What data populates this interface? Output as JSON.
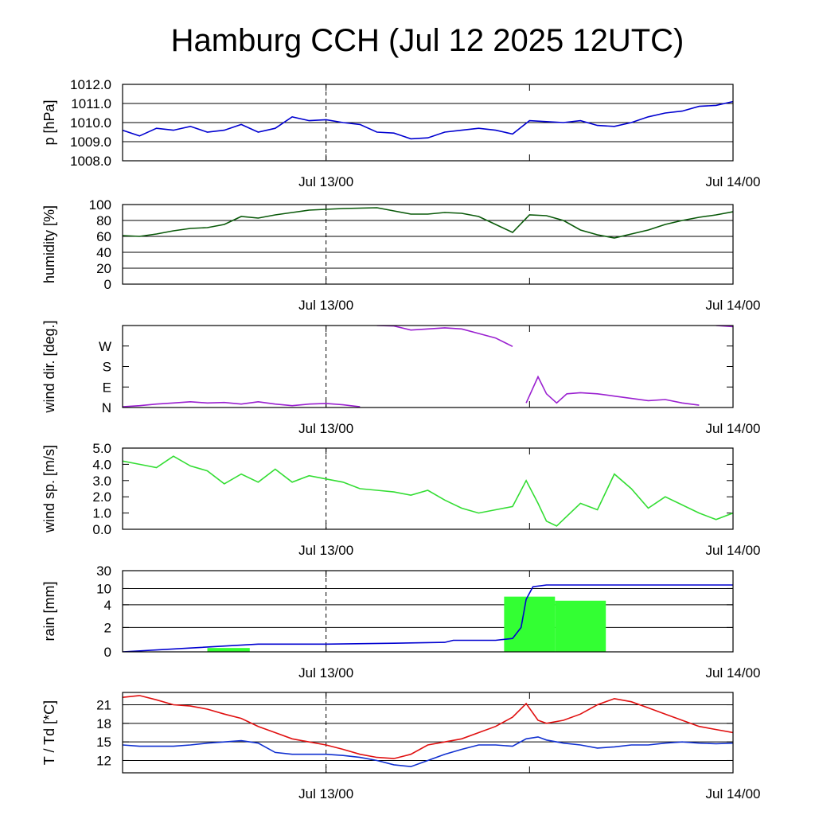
{
  "title": "Hamburg CCH (Jul 12 2025 12UTC)",
  "x_ticks": [
    "Jul 13/00",
    "Jul 14/00"
  ],
  "colors": {
    "pressure": "#0000d0",
    "humidity": "#0a5a0a",
    "wind_dir": "#9a20d0",
    "wind_speed": "#33dd33",
    "rain_bar": "#33ff33",
    "rain_line": "#0000d0",
    "temperature": "#e01010",
    "dewpoint": "#1030d0"
  },
  "chart_data": [
    {
      "type": "line",
      "ylabel": "p [hPa]",
      "ylim": [
        1008.0,
        1012.0
      ],
      "yticks": [
        "1008.0",
        "1009.0",
        "1010.0",
        "1011.0",
        "1012.0"
      ],
      "grid": true,
      "x_hours": [
        0,
        1,
        2,
        3,
        4,
        5,
        6,
        7,
        8,
        9,
        10,
        11,
        12,
        13,
        14,
        15,
        16,
        17,
        18,
        19,
        20,
        21,
        22,
        23,
        24,
        25,
        26,
        27,
        28,
        29,
        30,
        31,
        32,
        33,
        34,
        35,
        36
      ],
      "series": [
        {
          "values": [
            1009.6,
            1009.3,
            1009.7,
            1009.6,
            1009.8,
            1009.5,
            1009.6,
            1009.9,
            1009.5,
            1009.7,
            1010.3,
            1010.1,
            1010.15,
            1010.0,
            1009.9,
            1009.5,
            1009.45,
            1009.15,
            1009.2,
            1009.5,
            1009.6,
            1009.7,
            1009.6,
            1009.4,
            1010.1,
            1010.05,
            1010.0,
            1010.1,
            1009.85,
            1009.8,
            1010.0,
            1010.3,
            1010.5,
            1010.6,
            1010.85,
            1010.9,
            1011.1
          ]
        }
      ]
    },
    {
      "type": "line",
      "ylabel": "humidity [%]",
      "ylim": [
        0,
        100
      ],
      "yticks": [
        "0",
        "20",
        "40",
        "60",
        "80",
        "100"
      ],
      "grid": true,
      "x_hours": [
        0,
        1,
        2,
        3,
        4,
        5,
        6,
        7,
        8,
        9,
        10,
        11,
        12,
        13,
        14,
        15,
        16,
        17,
        18,
        19,
        20,
        21,
        22,
        23,
        24,
        25,
        26,
        27,
        28,
        29,
        30,
        31,
        32,
        33,
        34,
        35,
        36
      ],
      "series": [
        {
          "values": [
            61,
            60,
            63,
            67,
            70,
            71,
            75,
            85,
            83,
            87,
            90,
            93,
            94,
            95,
            95.5,
            96,
            92,
            88,
            88,
            90,
            89,
            85,
            75,
            65,
            87,
            86,
            80,
            68,
            62,
            58,
            63,
            68,
            75,
            80,
            84,
            87,
            91
          ]
        }
      ]
    },
    {
      "type": "line",
      "ylabel": "wind dir. [deg.]",
      "ylim": [
        0,
        360
      ],
      "yticks": [
        "N",
        "E",
        "S",
        "W"
      ],
      "grid": false,
      "x_hours": [
        0,
        1,
        2,
        3,
        4,
        5,
        6,
        7,
        8,
        9,
        10,
        11,
        12,
        13,
        14,
        15,
        16,
        17,
        18,
        19,
        20,
        21,
        22,
        23,
        23.8,
        24.5,
        25,
        25.6,
        26.2,
        27,
        28,
        29,
        30,
        31,
        32,
        33,
        34,
        35,
        36
      ],
      "series": [
        {
          "values": [
            3,
            8,
            15,
            20,
            25,
            20,
            22,
            15,
            25,
            15,
            8,
            15,
            18,
            12,
            3,
            360,
            358,
            340,
            345,
            350,
            345,
            325,
            305,
            268,
            20,
            135,
            60,
            20,
            60,
            65,
            60,
            50,
            40,
            30,
            35,
            20,
            10,
            360,
            355
          ]
        }
      ]
    },
    {
      "type": "line",
      "ylabel": "wind sp. [m/s]",
      "ylim": [
        0.0,
        5.0
      ],
      "yticks": [
        "0.0",
        "1.0",
        "2.0",
        "3.0",
        "4.0",
        "5.0"
      ],
      "grid": false,
      "x_hours": [
        0,
        1,
        2,
        3,
        4,
        5,
        6,
        7,
        8,
        9,
        10,
        11,
        12,
        13,
        14,
        15,
        16,
        17,
        18,
        19,
        20,
        21,
        22,
        23,
        23.8,
        24.5,
        25,
        25.6,
        26.2,
        27,
        28,
        29,
        30,
        31,
        32,
        33,
        34,
        35,
        36
      ],
      "series": [
        {
          "values": [
            4.2,
            4.0,
            3.8,
            4.5,
            3.9,
            3.6,
            2.8,
            3.4,
            2.9,
            3.7,
            2.9,
            3.3,
            3.1,
            2.9,
            2.5,
            2.4,
            2.3,
            2.1,
            2.4,
            1.8,
            1.3,
            1.0,
            1.2,
            1.4,
            3.0,
            1.6,
            0.5,
            0.2,
            0.8,
            1.6,
            1.2,
            3.4,
            2.5,
            1.3,
            2.0,
            1.5,
            1.0,
            0.6,
            1.0
          ]
        }
      ]
    },
    {
      "type": "bar",
      "ylabel": "rain [mm]",
      "ylim": [
        0,
        30
      ],
      "yticks": [
        "0",
        "2",
        "4",
        "10",
        "30"
      ],
      "grid": true,
      "bars": [
        {
          "x0": 5,
          "x1": 7.5,
          "value": 0.05
        },
        {
          "x0": 22.5,
          "x1": 25.5,
          "value": 7
        },
        {
          "x0": 25.5,
          "x1": 28.5,
          "value": 5.5
        }
      ],
      "x_hours": [
        0,
        4,
        8,
        12,
        16,
        19,
        19.5,
        22,
        23,
        23.5,
        23.8,
        24.2,
        25,
        36
      ],
      "series": [
        {
          "values": [
            0,
            0.05,
            0.2,
            0.2,
            0.25,
            0.3,
            0.45,
            0.45,
            0.6,
            2,
            6,
            12,
            14,
            14
          ]
        }
      ]
    },
    {
      "type": "line",
      "ylabel": "T / Td [*C]",
      "ylim": [
        10,
        23
      ],
      "yticks": [
        "12",
        "15",
        "18",
        "21"
      ],
      "grid": true,
      "x_hours": [
        0,
        1,
        2,
        3,
        4,
        5,
        6,
        7,
        8,
        9,
        10,
        11,
        12,
        13,
        14,
        15,
        16,
        17,
        18,
        19,
        20,
        21,
        22,
        23,
        23.8,
        24.5,
        25,
        26,
        27,
        28,
        29,
        30,
        31,
        32,
        33,
        34,
        35,
        36
      ],
      "series": [
        {
          "name": "T",
          "values": [
            22.2,
            22.5,
            21.8,
            21,
            20.8,
            20.3,
            19.5,
            18.8,
            17.5,
            16.5,
            15.5,
            15,
            14.5,
            13.8,
            13,
            12.5,
            12.3,
            13,
            14.5,
            15,
            15.5,
            16.5,
            17.5,
            19,
            21.2,
            18.5,
            18,
            18.5,
            19.5,
            21,
            22,
            21.5,
            20.5,
            19.5,
            18.5,
            17.5,
            17,
            16.5
          ]
        },
        {
          "name": "Td",
          "values": [
            14.5,
            14.3,
            14.3,
            14.3,
            14.5,
            14.8,
            15,
            15.2,
            14.8,
            13.3,
            13,
            13,
            13,
            12.8,
            12.5,
            12,
            11.3,
            11,
            12,
            13,
            13.8,
            14.5,
            14.5,
            14.3,
            15.5,
            15.8,
            15.3,
            14.8,
            14.5,
            14,
            14.2,
            14.5,
            14.5,
            14.8,
            15,
            14.8,
            14.7,
            14.8
          ]
        }
      ]
    }
  ]
}
